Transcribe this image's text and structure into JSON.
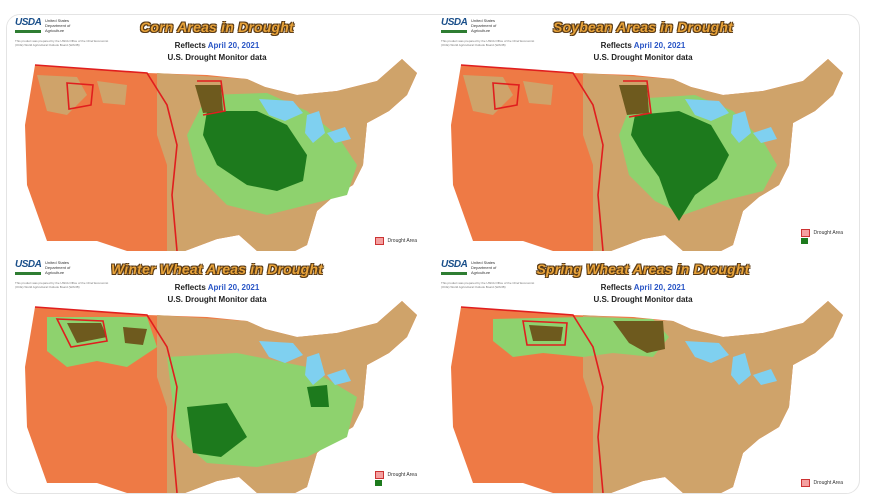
{
  "agency": {
    "logo": "USDA",
    "lines": [
      "United States",
      "Department of",
      "Agriculture"
    ]
  },
  "note": "This product was prepared by the USDA Office of the Chief Economist (OCE) World Agricultural Outlook Board (WAOB)",
  "reflects_label": "Reflects",
  "date": "April 20, 2021",
  "source": "U.S. Drought Monitor data",
  "legend": {
    "drought_area": "Drought Area"
  },
  "colors": {
    "drought_orange": "#ee7a45",
    "non_drought_tan": "#cfa36a",
    "crop_light_green": "#8ed26e",
    "crop_dark_green": "#1d7a1d",
    "crop_drought_olive": "#6e5a1e",
    "drought_outline": "#e01e1e",
    "lakes": "#7fd0f0"
  },
  "panels": [
    {
      "id": "corn",
      "title": "Corn Areas in Drought"
    },
    {
      "id": "soybean",
      "title": "Soybean Areas in Drought"
    },
    {
      "id": "winter-wheat",
      "title": "Winter Wheat Areas in Drought"
    },
    {
      "id": "spring-wheat",
      "title": "Spring Wheat Areas in Drought"
    }
  ]
}
